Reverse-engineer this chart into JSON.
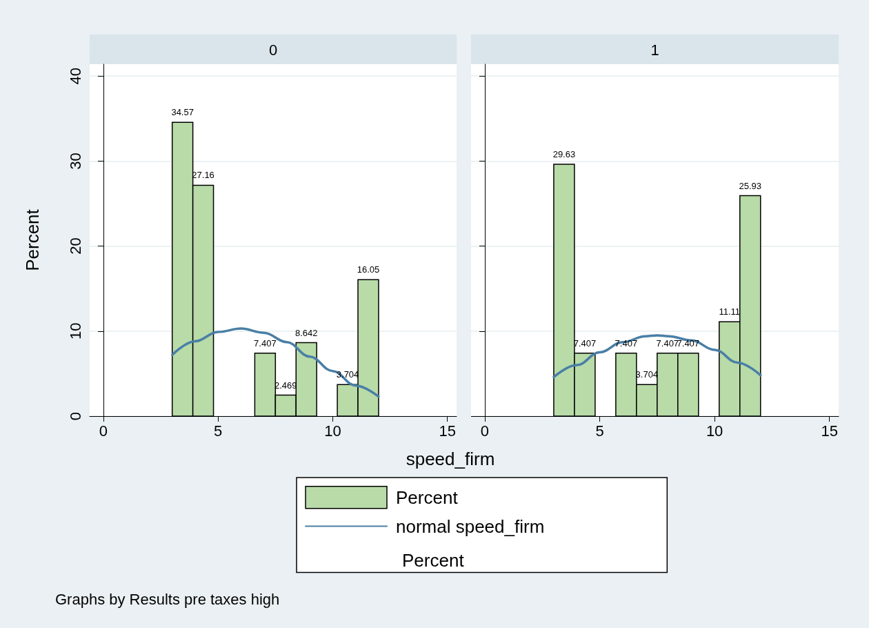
{
  "chart_data": [
    {
      "type": "histogram",
      "title": "0",
      "xlabel": "speed_firm",
      "ylabel": "Percent",
      "bins": [
        3,
        3.9,
        4.8,
        5.7,
        6.6,
        7.5,
        8.4,
        9.3,
        10.2,
        11.1,
        12
      ],
      "xlim": [
        -0.6,
        15.4
      ],
      "xticks": [
        0,
        5,
        10,
        15
      ],
      "ylim": [
        0,
        41.4
      ],
      "yticks": [
        0,
        10,
        20,
        30,
        40
      ],
      "grid": "y",
      "legend": "bottom",
      "annotations": [
        "Percent",
        "Graphs by Results pre taxes high"
      ],
      "series": [
        {
          "name": "Percent",
          "color": "#b8dba8",
          "values": [
            34.57,
            27.16,
            0,
            0,
            7.407,
            2.469,
            8.642,
            0,
            3.704,
            16.05
          ],
          "value_labels": [
            "34.57",
            "27.16",
            null,
            null,
            "7.407",
            "2.469",
            "8.642",
            null,
            "3.704",
            "16.05"
          ]
        },
        {
          "type": "line",
          "name": "normal speed_firm",
          "color": "#4a7fa6",
          "x": [
            3,
            4,
            5,
            6,
            7,
            8,
            9,
            10,
            11,
            12
          ],
          "values": [
            7.2,
            8.8,
            9.9,
            10.3,
            9.8,
            8.7,
            7.0,
            5.3,
            3.6,
            2.3
          ]
        }
      ]
    },
    {
      "type": "histogram",
      "title": "1",
      "bins": [
        3,
        3.9,
        4.8,
        5.7,
        6.6,
        7.5,
        8.4,
        9.3,
        10.2,
        11.1,
        12
      ],
      "xlim": [
        -0.6,
        15.4
      ],
      "xticks": [
        0,
        5,
        10,
        15
      ],
      "ylim": [
        0,
        41.4
      ],
      "yticks": [
        0,
        10,
        20,
        30,
        40
      ],
      "grid": "y",
      "tick_labels": "x",
      "series": [
        {
          "color": "#b8dba8",
          "values": [
            29.63,
            7.407,
            0,
            7.407,
            3.704,
            7.407,
            7.407,
            0,
            11.11,
            25.93
          ],
          "value_labels": [
            "29.63",
            "7.407",
            null,
            "7.407",
            "3.704",
            "7.407",
            "7.407",
            null,
            "11.11",
            "25.93"
          ]
        },
        {
          "type": "line",
          "color": "#4a7fa6",
          "x": [
            3,
            4,
            5,
            6,
            7,
            7.5,
            8,
            9,
            10,
            11,
            12
          ],
          "values": [
            4.6,
            6.0,
            7.5,
            8.7,
            9.4,
            9.5,
            9.4,
            8.9,
            7.8,
            6.3,
            4.8
          ]
        }
      ]
    }
  ]
}
